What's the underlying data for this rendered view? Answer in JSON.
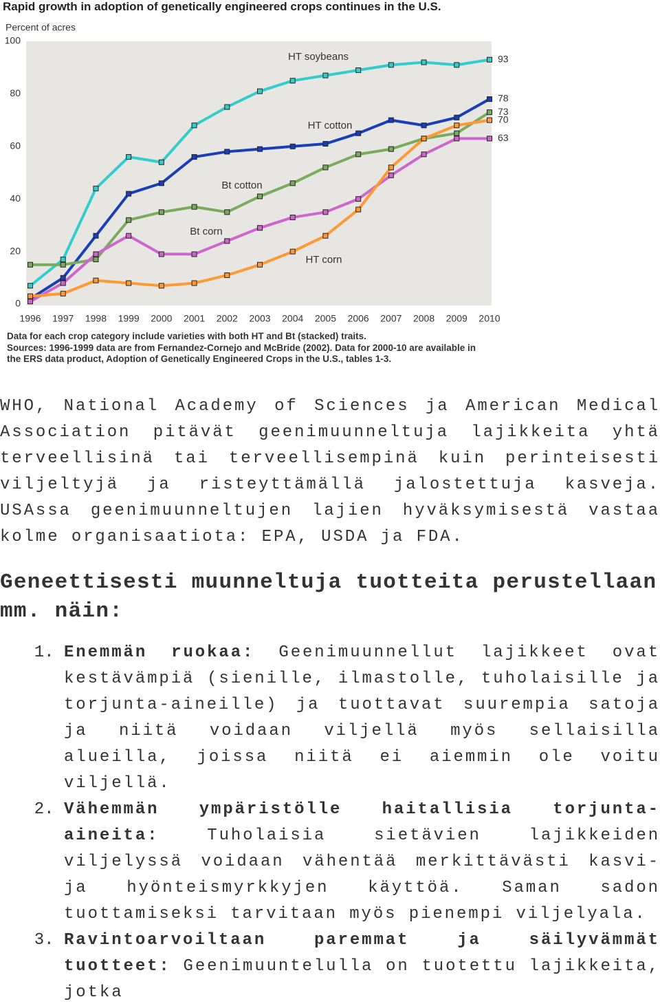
{
  "chart_data": {
    "type": "line",
    "title": "Rapid growth in adoption of genetically engineered crops continues in the U.S.",
    "y_label": "Percent of acres",
    "categories": [
      "1996",
      "1997",
      "1998",
      "1999",
      "2000",
      "2001",
      "2002",
      "2003",
      "2004",
      "2005",
      "2006",
      "2007",
      "2008",
      "2009",
      "2010"
    ],
    "series": [
      {
        "name": "HT soybeans",
        "color": "#33cccc",
        "values": [
          7,
          17,
          44,
          56,
          54,
          68,
          75,
          81,
          85,
          87,
          89,
          91,
          92,
          91,
          93
        ]
      },
      {
        "name": "HT cotton",
        "color": "#1a3db8",
        "values": [
          2,
          10,
          26,
          42,
          46,
          56,
          58,
          59,
          60,
          61,
          65,
          70,
          68,
          71,
          78
        ]
      },
      {
        "name": "Bt cotton",
        "color": "#7aab5c",
        "values": [
          15,
          15,
          17,
          32,
          35,
          37,
          35,
          41,
          46,
          52,
          57,
          59,
          63,
          65,
          73
        ]
      },
      {
        "name": "Bt corn",
        "color": "#cc66cc",
        "values": [
          1,
          8,
          19,
          26,
          19,
          19,
          24,
          29,
          33,
          35,
          40,
          49,
          57,
          63,
          63
        ]
      },
      {
        "name": "HT corn",
        "color": "#ff9933",
        "values": [
          3,
          4,
          9,
          8,
          7,
          8,
          11,
          15,
          20,
          26,
          36,
          52,
          63,
          68,
          70
        ]
      }
    ],
    "ylim": [
      0,
      100
    ],
    "yticks": [
      0,
      20,
      40,
      60,
      80,
      100
    ],
    "grid": false,
    "notes": [
      "Data for each crop category include varieties with both HT and Bt (stacked) traits.",
      "Sources: 1996-1999 data are from Fernandez-Cornejo and McBride (2002). Data for 2000-10 are available in the ERS data product, Adoption of Genetically Engineered Crops in the U.S., tables 1-3."
    ]
  },
  "document": {
    "paragraph": "WHO, National Academy of Sciences ja American Medical Association pitävät geenimuunneltuja lajikkeita yhtä terveellisinä tai terveellisempinä kuin perinteisesti viljeltyjä ja risteyttämällä jalostettuja kasveja. USAssa geenimuunneltujen lajien hyväksymisestä vastaa kolme organisaatiota: EPA, USDA ja FDA.",
    "heading": "Geneettisesti muunneltuja tuotteita perustellaan mm. näin:",
    "list": [
      {
        "lead": "Enemmän ruokaa:",
        "text": "Geenimuunnellut lajikkeet ovat kestävämpiä (sienille, ilmastolle, tuholaisille ja torjunta-aineille) ja tuottavat suurempia satoja ja niitä voidaan viljellä myös sellaisilla alueilla, joissa niitä ei aiemmin ole voitu viljellä."
      },
      {
        "lead": "Vähemmän ympäristölle haitallisia torjunta-aineita:",
        "text": "Tuholaisia sietävien lajikkeiden viljelyssä voidaan vähentää merkittävästi kasvi- ja hyönteismyrkkyjen käyttöä. Saman sadon tuottamiseksi tarvitaan myös pienempi viljelyala."
      },
      {
        "lead": "Ravintoarvoiltaan paremmat ja säilyvämmät tuotteet:",
        "text": "Geenimuuntelulla on tuotettu lajikkeita, jotka"
      }
    ]
  }
}
